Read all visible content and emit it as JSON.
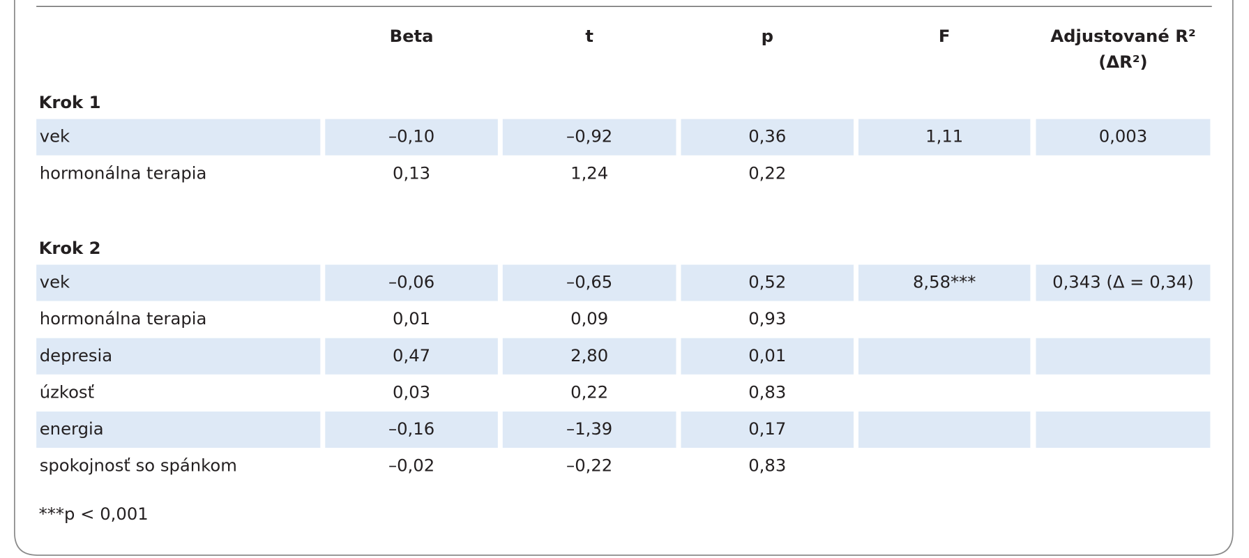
{
  "table": {
    "columns": [
      "Beta",
      "t",
      "p",
      "F",
      [
        "Adjustované R²",
        "(ΔR²)"
      ]
    ],
    "sections": [
      {
        "title": "Krok 1",
        "rows": [
          {
            "label": "vek",
            "beta": "–0,10",
            "t": "–0,92",
            "p": "0,36",
            "F": "1,11",
            "adj": "0,003"
          },
          {
            "label": "hormonálna terapia",
            "beta": "0,13",
            "t": "1,24",
            "p": "0,22"
          }
        ]
      },
      {
        "title": "Krok 2",
        "rows": [
          {
            "label": "vek",
            "beta": "–0,06",
            "t": "–0,65",
            "p": "0,52",
            "F": "8,58***",
            "adj": "0,343 (Δ = 0,34)"
          },
          {
            "label": "hormonálna terapia",
            "beta": "0,01",
            "t": "0,09",
            "p": "0,93"
          },
          {
            "label": "depresia",
            "beta": "0,47",
            "t": "2,80",
            "p": "0,01"
          },
          {
            "label": "úzkosť",
            "beta": "0,03",
            "t": "0,22",
            "p": "0,83"
          },
          {
            "label": "energia",
            "beta": "–0,16",
            "t": "–1,39",
            "p": "0,17"
          },
          {
            "label": "spokojnosť so spánkom",
            "beta": "–0,02",
            "t": "–0,22",
            "p": "0,83"
          }
        ]
      }
    ],
    "footnote": "***p < 0,001"
  }
}
